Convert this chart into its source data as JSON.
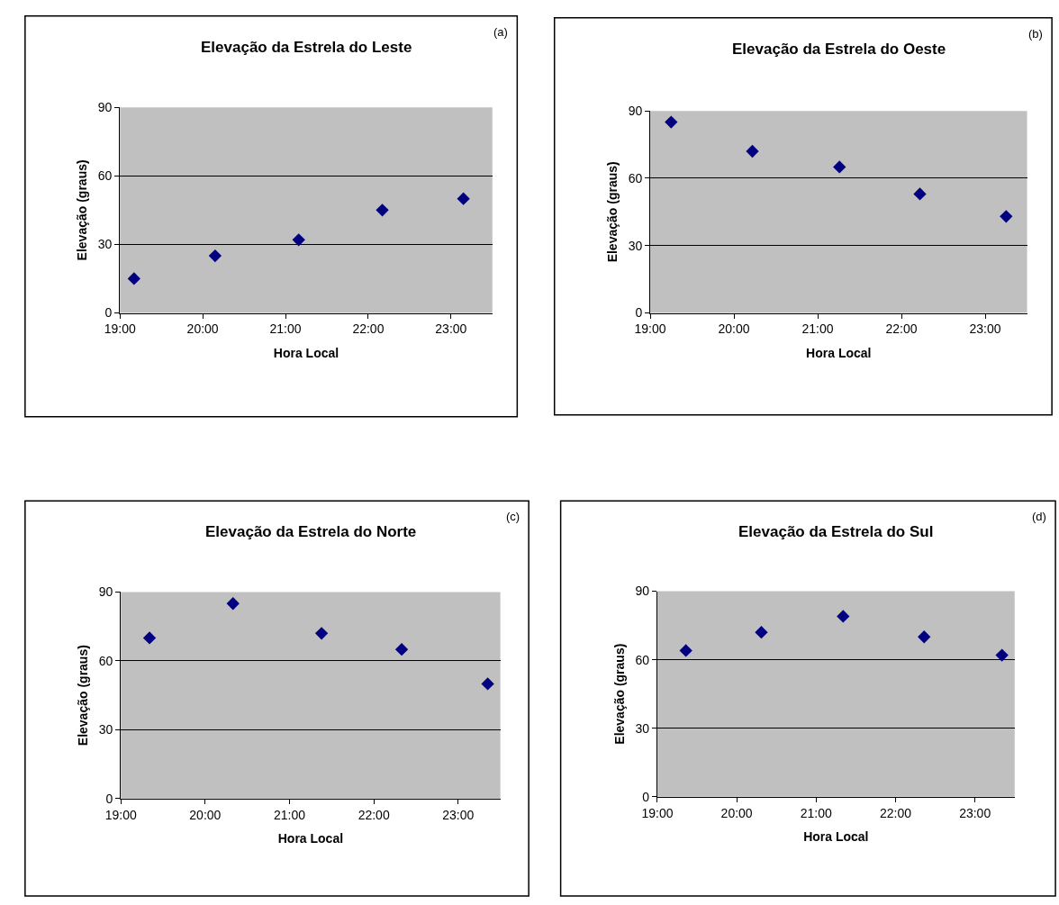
{
  "chart_data": [
    {
      "type": "scatter",
      "title": "Elevação da Estrela do Leste",
      "xlabel": "Hora Local",
      "ylabel": "Elevação (graus)",
      "annotations": [
        "(a)"
      ],
      "x": [
        19.17,
        20.15,
        21.16,
        22.17,
        23.15
      ],
      "series": [
        {
          "color": "#000080",
          "values": [
            15,
            25,
            32,
            45,
            50
          ]
        }
      ],
      "xlim": [
        19,
        23.5
      ],
      "xticks": [
        {
          "value": 19,
          "label": "19:00"
        },
        {
          "value": 20,
          "label": "20:00"
        },
        {
          "value": 21,
          "label": "21:00"
        },
        {
          "value": 22,
          "label": "22:00"
        },
        {
          "value": 23,
          "label": "23:00"
        }
      ],
      "ylim": [
        0,
        90
      ],
      "yticks": [
        0,
        30,
        60,
        90
      ],
      "grid": "y",
      "marker": "diamond"
    },
    {
      "type": "scatter",
      "title": "Elevação da Estrela do Oeste",
      "xlabel": "Hora Local",
      "ylabel": "Elevação (graus)",
      "annotations": [
        "(b)"
      ],
      "x": [
        19.25,
        20.22,
        21.26,
        22.22,
        23.25
      ],
      "series": [
        {
          "color": "#000080",
          "values": [
            85,
            72,
            65,
            53,
            43
          ]
        }
      ],
      "xlim": [
        19,
        23.5
      ],
      "xticks": [
        {
          "value": 19,
          "label": "19:00"
        },
        {
          "value": 20,
          "label": "20:00"
        },
        {
          "value": 21,
          "label": "21:00"
        },
        {
          "value": 22,
          "label": "22:00"
        },
        {
          "value": 23,
          "label": "23:00"
        }
      ],
      "ylim": [
        0,
        90
      ],
      "yticks": [
        0,
        30,
        60,
        90
      ],
      "grid": "y",
      "marker": "diamond"
    },
    {
      "type": "scatter",
      "title": "Elevação da Estrela do Norte",
      "xlabel": "Hora Local",
      "ylabel": "Elevação (graus)",
      "annotations": [
        "(c)"
      ],
      "x": [
        19.34,
        20.33,
        21.38,
        22.33,
        23.35
      ],
      "series": [
        {
          "color": "#000080",
          "values": [
            70,
            85,
            72,
            65,
            50
          ]
        }
      ],
      "xlim": [
        19,
        23.5
      ],
      "xticks": [
        {
          "value": 19,
          "label": "19:00"
        },
        {
          "value": 20,
          "label": "20:00"
        },
        {
          "value": 21,
          "label": "21:00"
        },
        {
          "value": 22,
          "label": "22:00"
        },
        {
          "value": 23,
          "label": "23:00"
        }
      ],
      "ylim": [
        0,
        90
      ],
      "yticks": [
        0,
        30,
        60,
        90
      ],
      "grid": "y",
      "marker": "diamond"
    },
    {
      "type": "scatter",
      "title": "Elevação da Estrela do Sul",
      "xlabel": "Hora Local",
      "ylabel": "Elevação (graus)",
      "annotations": [
        "(d)"
      ],
      "x": [
        19.36,
        20.31,
        21.34,
        22.36,
        23.34
      ],
      "series": [
        {
          "color": "#000080",
          "values": [
            64,
            72,
            79,
            70,
            62
          ]
        }
      ],
      "xlim": [
        19,
        23.5
      ],
      "xticks": [
        {
          "value": 19,
          "label": "19:00"
        },
        {
          "value": 20,
          "label": "20:00"
        },
        {
          "value": 21,
          "label": "21:00"
        },
        {
          "value": 22,
          "label": "22:00"
        },
        {
          "value": 23,
          "label": "23:00"
        }
      ],
      "ylim": [
        0,
        90
      ],
      "yticks": [
        0,
        30,
        60,
        90
      ],
      "grid": "y",
      "marker": "diamond"
    }
  ]
}
